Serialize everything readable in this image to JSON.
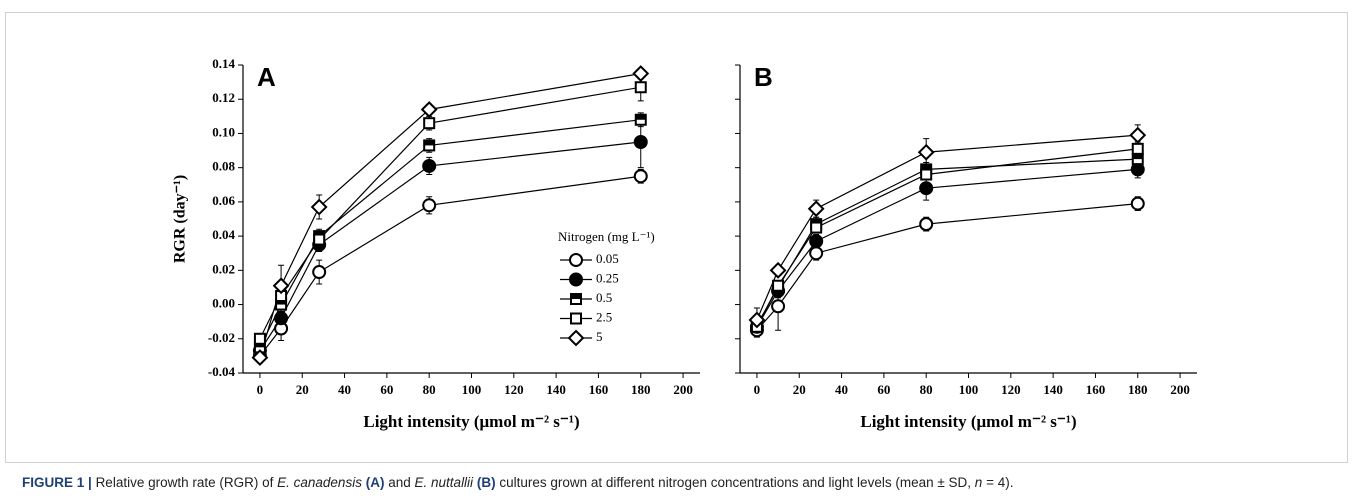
{
  "chart_data": [
    {
      "type": "line",
      "label": "A",
      "ylabel": "RGR (day⁻¹)",
      "xlabel": "Light intensity (μmol m⁻² s⁻¹)",
      "xlim": [
        -8,
        208
      ],
      "ylim": [
        -0.04,
        0.14
      ],
      "xticks": [
        0,
        20,
        40,
        60,
        80,
        100,
        120,
        140,
        160,
        180,
        200
      ],
      "yticks": [
        -0.04,
        -0.02,
        {
          "value": 0,
          "label": "0.00"
        },
        0.02,
        0.04,
        0.06,
        0.08,
        {
          "value": 0.1,
          "label": "0.10"
        },
        0.12,
        0.14
      ],
      "show_ytick_labels": true,
      "legend_title": "Nitrogen (mg L⁻¹)",
      "legend_loc": "lower right",
      "x": [
        0,
        10,
        28,
        80,
        180
      ],
      "series": [
        {
          "name": "0.05",
          "color": "#000000",
          "marker": "circle-open",
          "values": [
            -0.03,
            -0.014,
            0.019,
            0.058,
            0.075
          ],
          "errors": [
            0.004,
            0.007,
            0.007,
            0.005,
            0.004
          ]
        },
        {
          "name": "0.25",
          "color": "#000000",
          "marker": "circle-filled",
          "values": [
            -0.027,
            -0.008,
            0.035,
            0.081,
            0.095
          ],
          "errors": [
            0.004,
            0.005,
            0.004,
            0.005,
            0.015
          ]
        },
        {
          "name": "0.5",
          "color": "#000000",
          "marker": "square-half",
          "values": [
            -0.025,
            0.0,
            0.04,
            0.093,
            0.108
          ],
          "errors": [
            0.003,
            0.004,
            0.004,
            0.004,
            0.004
          ]
        },
        {
          "name": "2.5",
          "color": "#000000",
          "marker": "square-open",
          "values": [
            -0.02,
            0.005,
            0.038,
            0.106,
            0.127
          ],
          "errors": [
            0.003,
            0.004,
            0.004,
            0.004,
            0.008
          ]
        },
        {
          "name": "5",
          "color": "#000000",
          "marker": "diamond-open",
          "values": [
            -0.031,
            0.011,
            0.057,
            0.114,
            0.135
          ],
          "errors": [
            0.003,
            0.012,
            0.007,
            0.003,
            0.003
          ]
        }
      ]
    },
    {
      "type": "line",
      "label": "B",
      "xlabel": "Light intensity (μmol m⁻² s⁻¹)",
      "xlim": [
        -8,
        208
      ],
      "ylim": [
        -0.04,
        0.14
      ],
      "xticks": [
        0,
        20,
        40,
        60,
        80,
        100,
        120,
        140,
        160,
        180,
        200
      ],
      "yticks": [
        -0.04,
        -0.02,
        0,
        0.02,
        0.04,
        0.06,
        0.08,
        0.1,
        0.12,
        0.14
      ],
      "show_ytick_labels": false,
      "x": [
        0,
        10,
        28,
        80,
        180
      ],
      "series": [
        {
          "name": "0.05",
          "color": "#000000",
          "marker": "circle-open",
          "values": [
            -0.015,
            -0.001,
            0.03,
            0.047,
            0.059
          ],
          "errors": [
            0.004,
            0.014,
            0.004,
            0.004,
            0.004
          ]
        },
        {
          "name": "0.25",
          "color": "#000000",
          "marker": "circle-filled",
          "values": [
            -0.013,
            0.008,
            0.037,
            0.068,
            0.079
          ],
          "errors": [
            0.004,
            0.004,
            0.004,
            0.007,
            0.005
          ]
        },
        {
          "name": "0.5",
          "color": "#000000",
          "marker": "square-half",
          "values": [
            -0.012,
            0.01,
            0.047,
            0.079,
            0.085
          ],
          "errors": [
            0.003,
            0.003,
            0.004,
            0.004,
            0.004
          ]
        },
        {
          "name": "2.5",
          "color": "#000000",
          "marker": "square-open",
          "values": [
            -0.013,
            0.011,
            0.045,
            0.076,
            0.091
          ],
          "errors": [
            0.003,
            0.003,
            0.003,
            0.003,
            0.004
          ]
        },
        {
          "name": "5",
          "color": "#000000",
          "marker": "diamond-open",
          "values": [
            -0.009,
            0.02,
            0.056,
            0.089,
            0.099
          ],
          "errors": [
            0.007,
            0.003,
            0.005,
            0.008,
            0.006
          ]
        }
      ]
    }
  ],
  "caption": [
    "FIGURE 1 |",
    "Relative growth rate (RGR) of",
    "E. canadensis",
    "(A)",
    "and",
    "E. nuttallii",
    "(B)",
    "cultures grown at different nitrogen concentrations and light levels (mean ± SD,",
    "n",
    "= 4)."
  ]
}
